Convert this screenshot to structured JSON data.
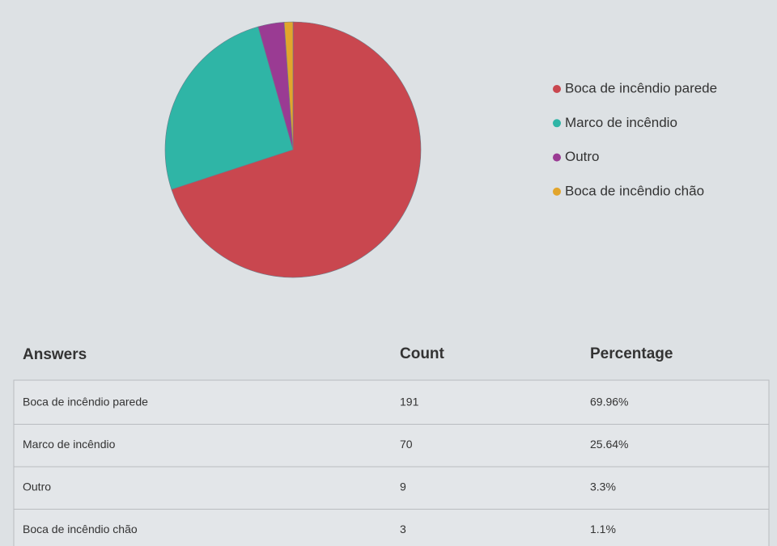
{
  "chart_data": {
    "type": "pie",
    "categories": [
      "Boca de incêndio parede",
      "Marco de incêndio",
      "Outro",
      "Boca de incêndio chão"
    ],
    "values": [
      191,
      70,
      9,
      3
    ],
    "colors": [
      "#c9474f",
      "#2fb5a6",
      "#9a3b93",
      "#e2a52c"
    ],
    "legend": "right"
  },
  "table": {
    "headers": [
      "Answers",
      "Count",
      "Percentage"
    ],
    "percentages": [
      "69.96%",
      "25.64%",
      "3.3%",
      "1.1%"
    ]
  }
}
